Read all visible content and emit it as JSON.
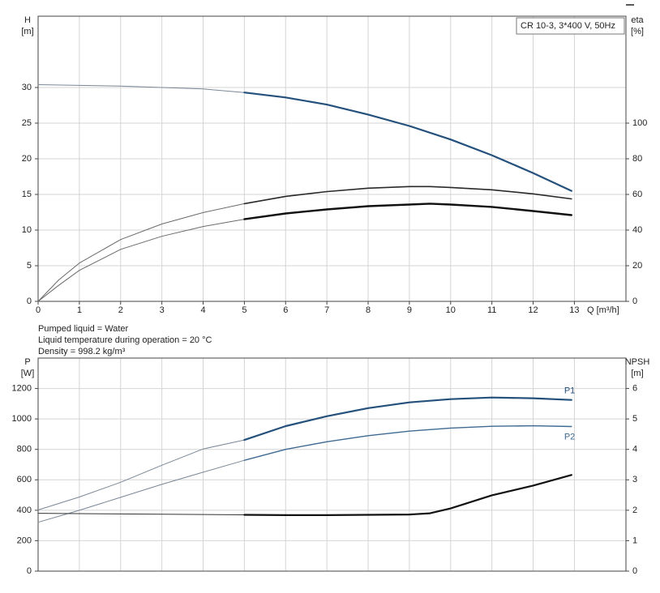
{
  "chart_data": [
    {
      "type": "line",
      "ylabel": "H",
      "yunit": "[m]",
      "y2label": "eta",
      "y2unit": "[%]",
      "xlabel": "Q [m³/h]",
      "annotation": "CR 10-3, 3*400 V, 50Hz",
      "xlim": [
        0,
        14.25
      ],
      "xticks": [
        0,
        1,
        2,
        3,
        4,
        5,
        6,
        7,
        8,
        9,
        10,
        11,
        12,
        13
      ],
      "ylim": [
        0,
        40
      ],
      "yticks": [
        0,
        5,
        10,
        15,
        20,
        25,
        30
      ],
      "y2lim": [
        0,
        160
      ],
      "y2ticks": [
        0,
        20,
        40,
        60,
        80,
        100
      ],
      "grid": true,
      "series": [
        {
          "color": "#7a8796",
          "width": 1,
          "x": [
            0,
            1,
            2,
            3,
            4,
            5
          ],
          "values": [
            30.4,
            30.3,
            30.2,
            30.0,
            29.8,
            29.3
          ]
        },
        {
          "color": "#24507c",
          "width": 2.2,
          "x": [
            5,
            6,
            7,
            8,
            9,
            10,
            11,
            12,
            12.93
          ],
          "values": [
            29.3,
            28.6,
            27.6,
            26.2,
            24.6,
            22.7,
            20.5,
            18.0,
            15.5
          ]
        },
        {
          "color": "#6a6a6a",
          "width": 1,
          "axis": "y2",
          "x": [
            0,
            0.5,
            1,
            2,
            3,
            4,
            5
          ],
          "values": [
            0,
            12,
            21.5,
            34.7,
            43.4,
            49.8,
            54.8
          ]
        },
        {
          "color": "#2a2a2a",
          "width": 1.6,
          "axis": "y2",
          "x": [
            5,
            6,
            7,
            8,
            9,
            9.5,
            10,
            11,
            12,
            12.93
          ],
          "values": [
            54.8,
            58.9,
            61.6,
            63.5,
            64.4,
            64.4,
            63.9,
            62.6,
            60.3,
            57.5
          ]
        },
        {
          "color": "#6a6a6a",
          "width": 1,
          "axis": "y2",
          "x": [
            0,
            0.5,
            1,
            2,
            3,
            4,
            5
          ],
          "values": [
            0,
            9,
            17.4,
            29.2,
            36.5,
            42,
            46.1
          ]
        },
        {
          "color": "#111111",
          "width": 2.4,
          "axis": "y2",
          "x": [
            5,
            6,
            7,
            8,
            9,
            9.5,
            10,
            11,
            12,
            12.93
          ],
          "values": [
            46.1,
            49.3,
            51.6,
            53.4,
            54.3,
            54.8,
            54.3,
            53,
            50.7,
            48.4
          ]
        }
      ]
    },
    {
      "type": "line",
      "ylabel": "P",
      "yunit": "[W]",
      "y2label": "NPSH",
      "y2unit": "[m]",
      "notes": [
        "Pumped liquid = Water",
        "Liquid temperature during operation = 20 °C",
        "Density = 998.2 kg/m³"
      ],
      "xlim": [
        0,
        14.25
      ],
      "xticks": [
        0,
        1,
        2,
        3,
        4,
        5,
        6,
        7,
        8,
        9,
        10,
        11,
        12,
        13
      ],
      "ylim": [
        0,
        1400
      ],
      "yticks": [
        0,
        200,
        400,
        600,
        800,
        1000,
        1200
      ],
      "y2lim": [
        0,
        7
      ],
      "y2ticks": [
        0,
        1,
        2,
        3,
        4,
        5,
        6
      ],
      "grid": true,
      "series": [
        {
          "color": "#7a8796",
          "width": 1,
          "x": [
            0,
            1,
            2,
            3,
            4,
            5
          ],
          "values": [
            402,
            487,
            584,
            696,
            803,
            862
          ]
        },
        {
          "name": "P1",
          "label_position": "above",
          "color": "#24507c",
          "width": 2.2,
          "x": [
            5,
            6,
            7,
            8,
            9,
            10,
            11,
            12,
            12.93
          ],
          "values": [
            862,
            953,
            1018,
            1071,
            1109,
            1130,
            1141,
            1136,
            1125
          ]
        },
        {
          "color": "#7a8796",
          "width": 1,
          "x": [
            0,
            1,
            2,
            3,
            4,
            5
          ],
          "values": [
            321,
            400,
            485,
            570,
            650,
            728
          ]
        },
        {
          "name": "P2",
          "label_position": "below",
          "color": "#3f6a92",
          "width": 1.4,
          "x": [
            5,
            6,
            7,
            8,
            9,
            10,
            11,
            12,
            12.93
          ],
          "values": [
            728,
            800,
            850,
            890,
            920,
            940,
            952,
            955,
            950
          ]
        },
        {
          "color": "#333333",
          "width": 1,
          "axis": "y2",
          "x": [
            0,
            5
          ],
          "values": [
            1.9,
            1.85
          ]
        },
        {
          "color": "#111111",
          "width": 2.2,
          "axis": "y2",
          "x": [
            5,
            6,
            7,
            8,
            9,
            9.5,
            10,
            11,
            12,
            12.93
          ],
          "values": [
            1.85,
            1.84,
            1.84,
            1.85,
            1.86,
            1.9,
            2.06,
            2.49,
            2.81,
            3.16
          ]
        }
      ]
    }
  ]
}
